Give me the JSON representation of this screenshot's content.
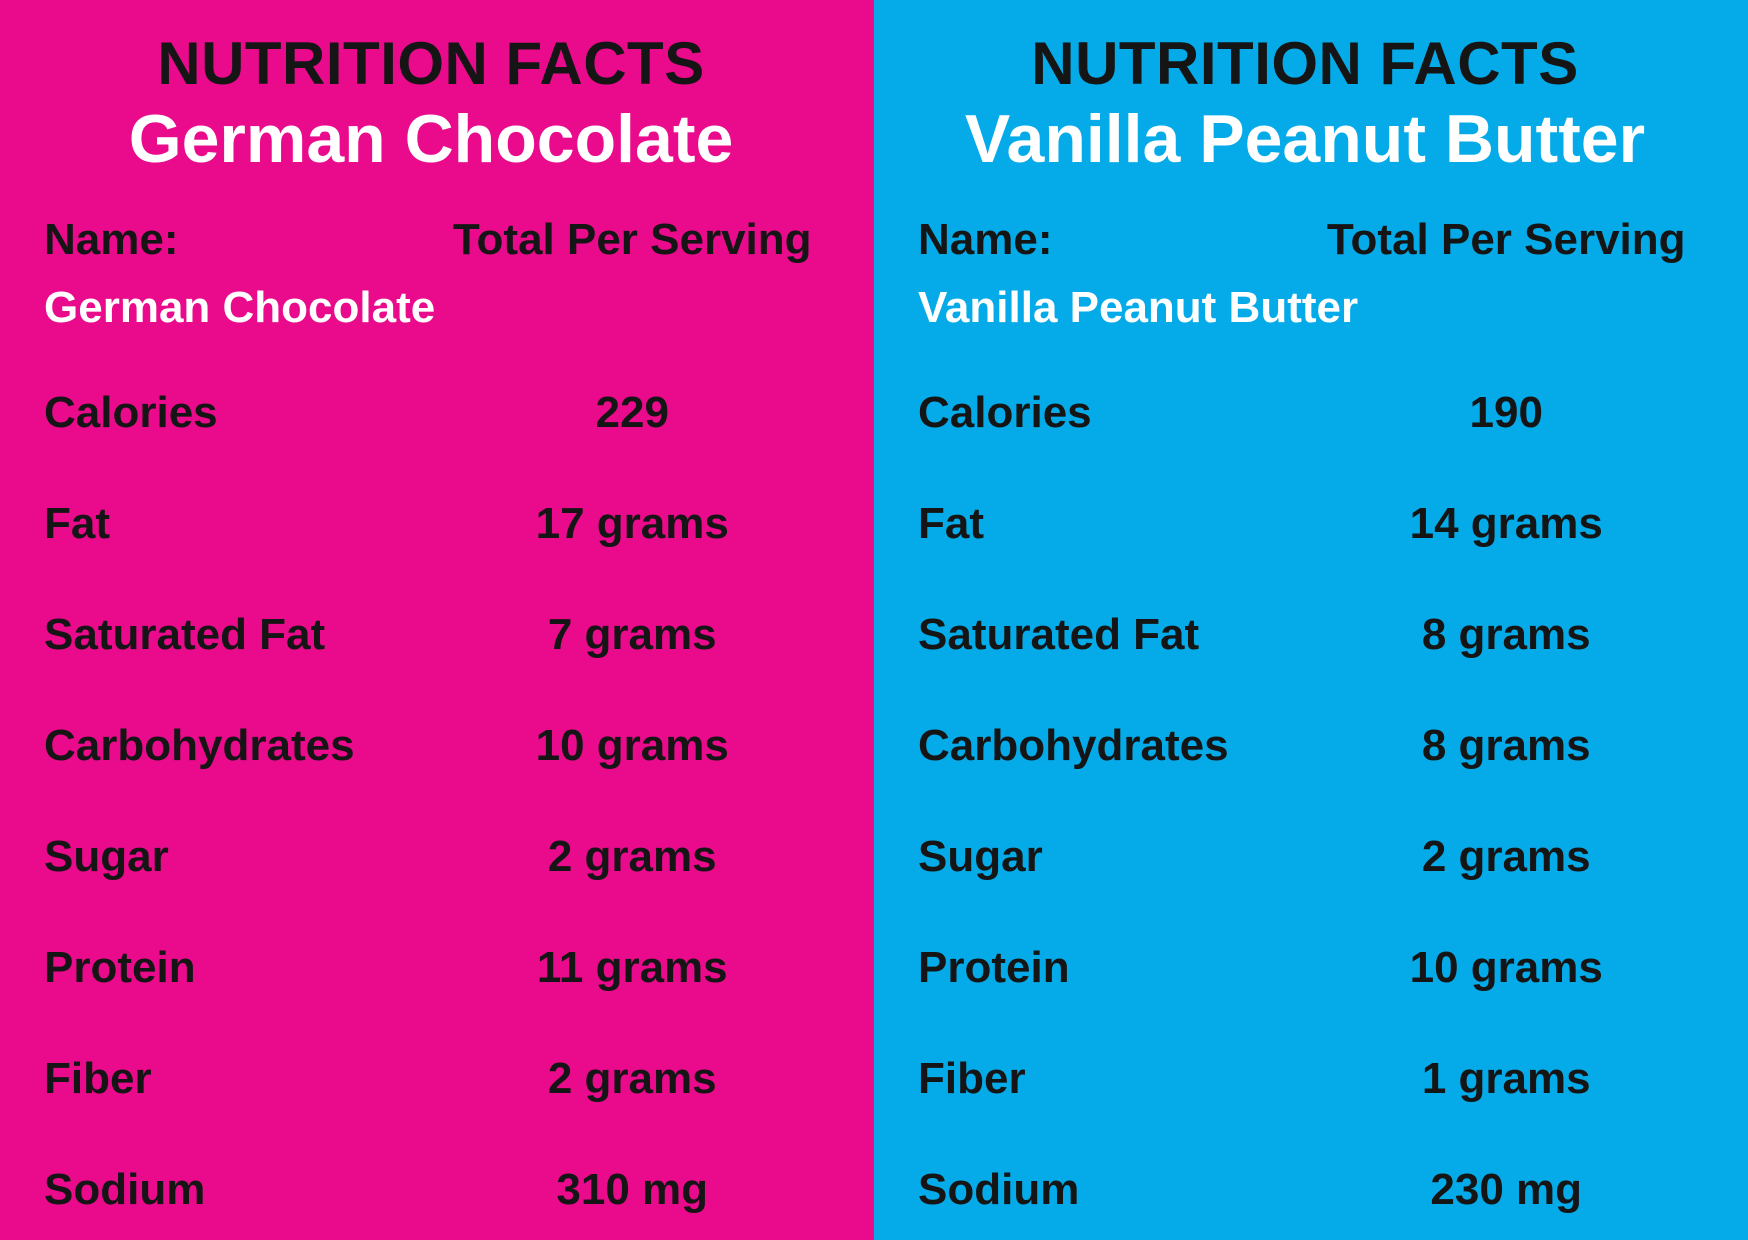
{
  "colors": {
    "pink": "#ea0a8c",
    "blue": "#04abe8",
    "text_dark": "#151515",
    "text_light": "#ffffff"
  },
  "panels": [
    {
      "id": "german-chocolate",
      "bg_color": "#ea0a8c",
      "heading": "NUTRITION FACTS",
      "product_name": "German Chocolate",
      "name_label": "Name:",
      "value_header": "Total Per Serving",
      "name_value": "German Chocolate",
      "rows": [
        {
          "label": "Calories",
          "value": "229"
        },
        {
          "label": "Fat",
          "value": "17 grams"
        },
        {
          "label": "Saturated Fat",
          "value": "7 grams"
        },
        {
          "label": "Carbohydrates",
          "value": "10 grams"
        },
        {
          "label": "Sugar",
          "value": "2 grams"
        },
        {
          "label": "Protein",
          "value": "11 grams"
        },
        {
          "label": "Fiber",
          "value": "2 grams"
        },
        {
          "label": "Sodium",
          "value": "310 mg"
        }
      ]
    },
    {
      "id": "vanilla-peanut-butter",
      "bg_color": "#04abe8",
      "heading": "NUTRITION FACTS",
      "product_name": "Vanilla Peanut Butter",
      "name_label": "Name:",
      "value_header": "Total Per Serving",
      "name_value": "Vanilla Peanut Butter",
      "rows": [
        {
          "label": "Calories",
          "value": "190"
        },
        {
          "label": "Fat",
          "value": "14 grams"
        },
        {
          "label": "Saturated Fat",
          "value": "8 grams"
        },
        {
          "label": "Carbohydrates",
          "value": "8 grams"
        },
        {
          "label": "Sugar",
          "value": "2 grams"
        },
        {
          "label": "Protein",
          "value": "10 grams"
        },
        {
          "label": "Fiber",
          "value": "1 grams"
        },
        {
          "label": "Sodium",
          "value": "230 mg"
        }
      ]
    }
  ]
}
